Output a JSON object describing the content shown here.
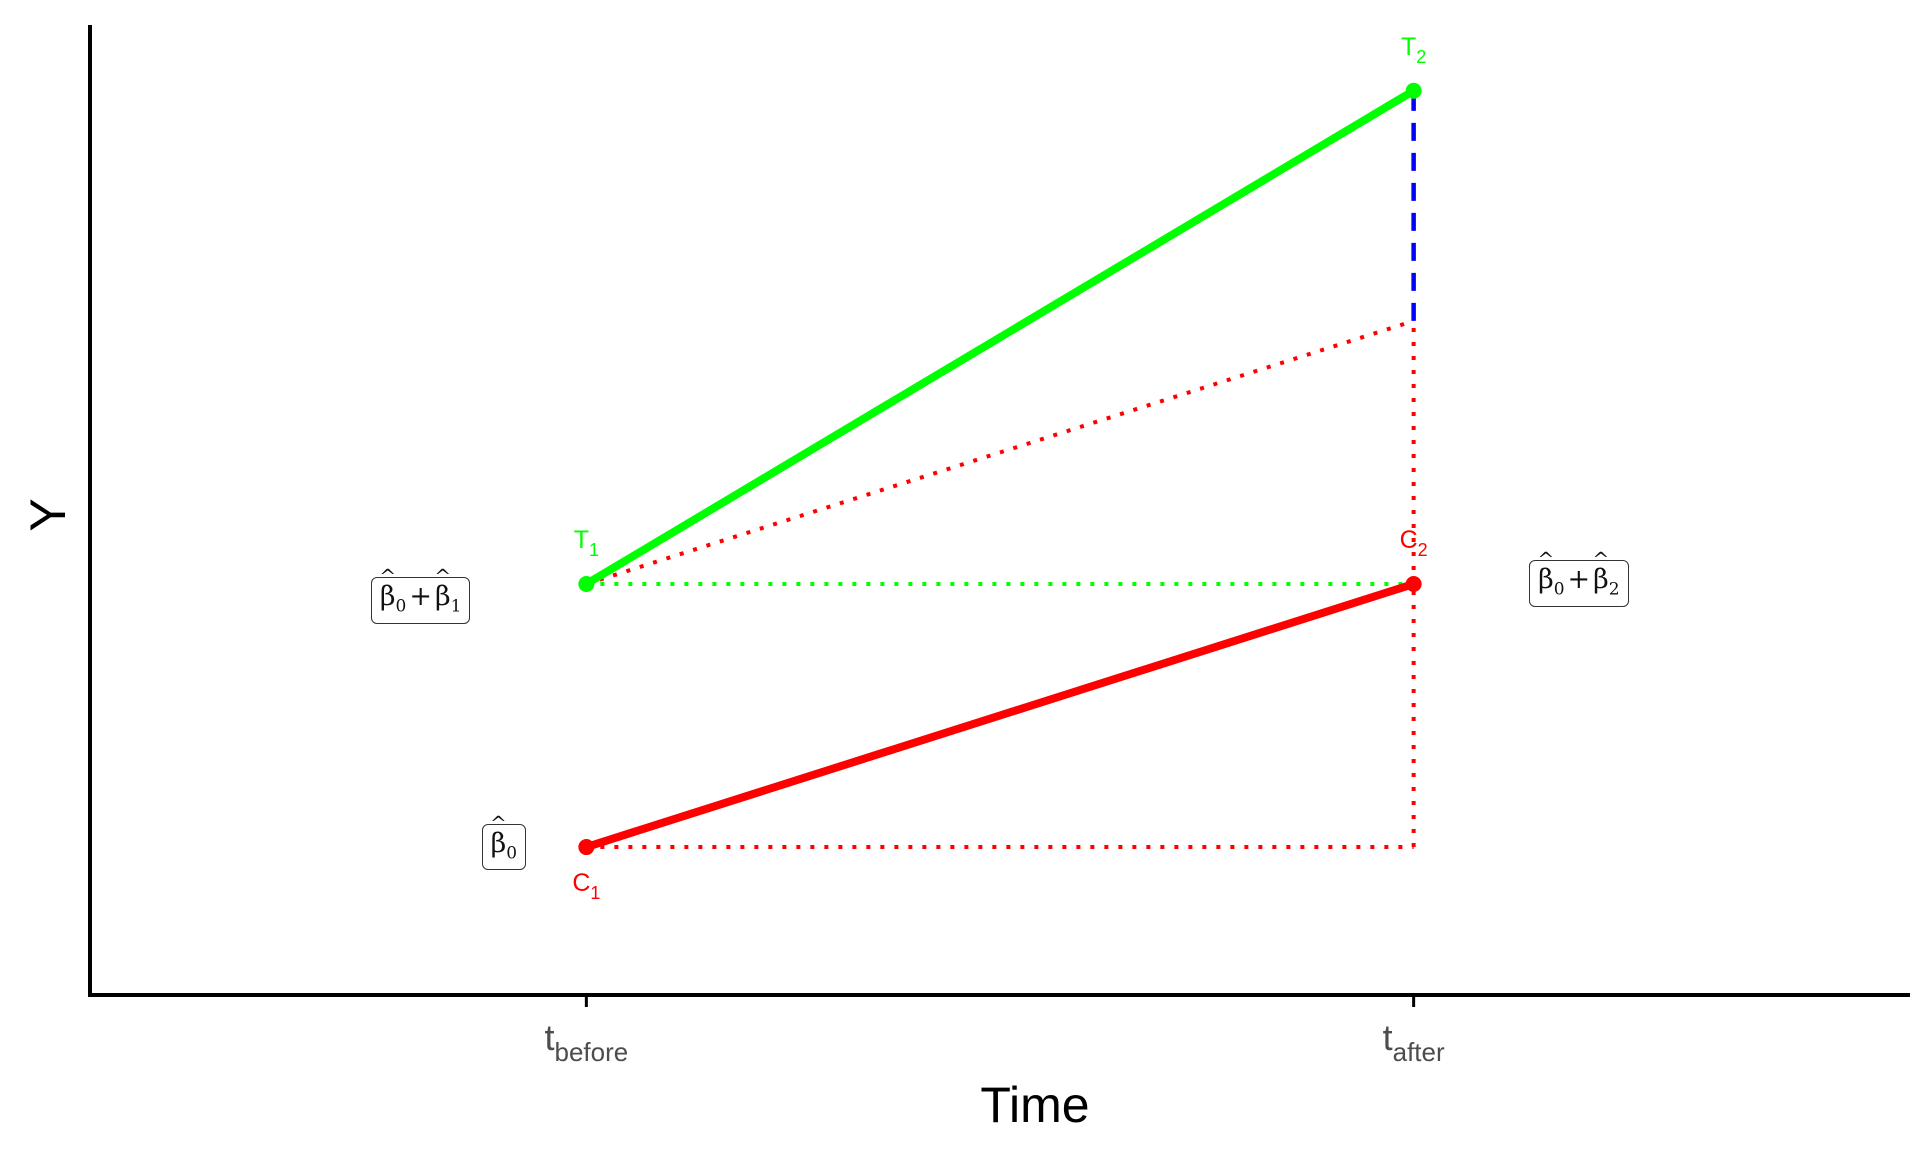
{
  "colors": {
    "control": "#ff0000",
    "treatment": "#00ff00",
    "effect": "#0000ff",
    "axis": "#000000",
    "tick_label": "#4d4d4d"
  },
  "chart_data": {
    "type": "line",
    "title": "",
    "xlabel": "Time",
    "ylabel": "Y",
    "categories": [
      "before",
      "after"
    ],
    "x_tick_labels": [
      {
        "base": "t",
        "sub": "before"
      },
      {
        "base": "t",
        "sub": "after"
      }
    ],
    "xlim": [
      -0.6,
      1.6
    ],
    "ylim": [
      0.25,
      3.2
    ],
    "grid": false,
    "legend": "none",
    "series": [
      {
        "values": [
          1.5,
          3.0
        ],
        "color": "#00ff00",
        "style": "solid",
        "role": "treatment"
      },
      {
        "values": [
          0.7,
          1.5
        ],
        "color": "#ff0000",
        "style": "solid",
        "role": "control"
      }
    ],
    "reference_lines": [
      {
        "from": [
          0,
          1.5
        ],
        "to": [
          1,
          1.5
        ],
        "color": "#00ff00",
        "style": "dotted"
      },
      {
        "from": [
          0,
          0.7
        ],
        "to": [
          1,
          0.7
        ],
        "color": "#ff0000",
        "style": "dotted"
      },
      {
        "from": [
          0,
          1.5
        ],
        "to": [
          1,
          2.3
        ],
        "color": "#ff0000",
        "style": "dotted"
      },
      {
        "from": [
          1,
          0.7
        ],
        "to": [
          1,
          1.5
        ],
        "color": "#ff0000",
        "style": "dotted"
      },
      {
        "from": [
          1,
          1.5
        ],
        "to": [
          1,
          2.3
        ],
        "color": "#ff0000",
        "style": "dotted"
      },
      {
        "from": [
          1,
          2.3
        ],
        "to": [
          1,
          3.0
        ],
        "color": "#0000ff",
        "style": "dashed"
      }
    ],
    "point_labels": [
      {
        "base": "T",
        "sub": "1",
        "x": 0,
        "y": 1.5,
        "color": "#00ff00",
        "position": "above"
      },
      {
        "base": "T",
        "sub": "2",
        "x": 1,
        "y": 3.0,
        "color": "#00ff00",
        "position": "above"
      },
      {
        "base": "C",
        "sub": "1",
        "x": 0,
        "y": 0.7,
        "color": "#ff0000",
        "position": "below"
      },
      {
        "base": "C",
        "sub": "2",
        "x": 1,
        "y": 1.5,
        "color": "#ff0000",
        "position": "above"
      }
    ],
    "annotations": [
      {
        "terms": [
          {
            "base": "β",
            "sub": "0"
          },
          {
            "base": "β",
            "sub": "1"
          }
        ],
        "op": "+",
        "x": -0.2,
        "y": 1.45
      },
      {
        "terms": [
          {
            "base": "β",
            "sub": "0"
          },
          {
            "base": "β",
            "sub": "2"
          }
        ],
        "op": "+",
        "x": 1.2,
        "y": 1.5
      },
      {
        "terms": [
          {
            "base": "β",
            "sub": "0"
          }
        ],
        "op": "",
        "x": -0.1,
        "y": 0.7
      }
    ]
  }
}
